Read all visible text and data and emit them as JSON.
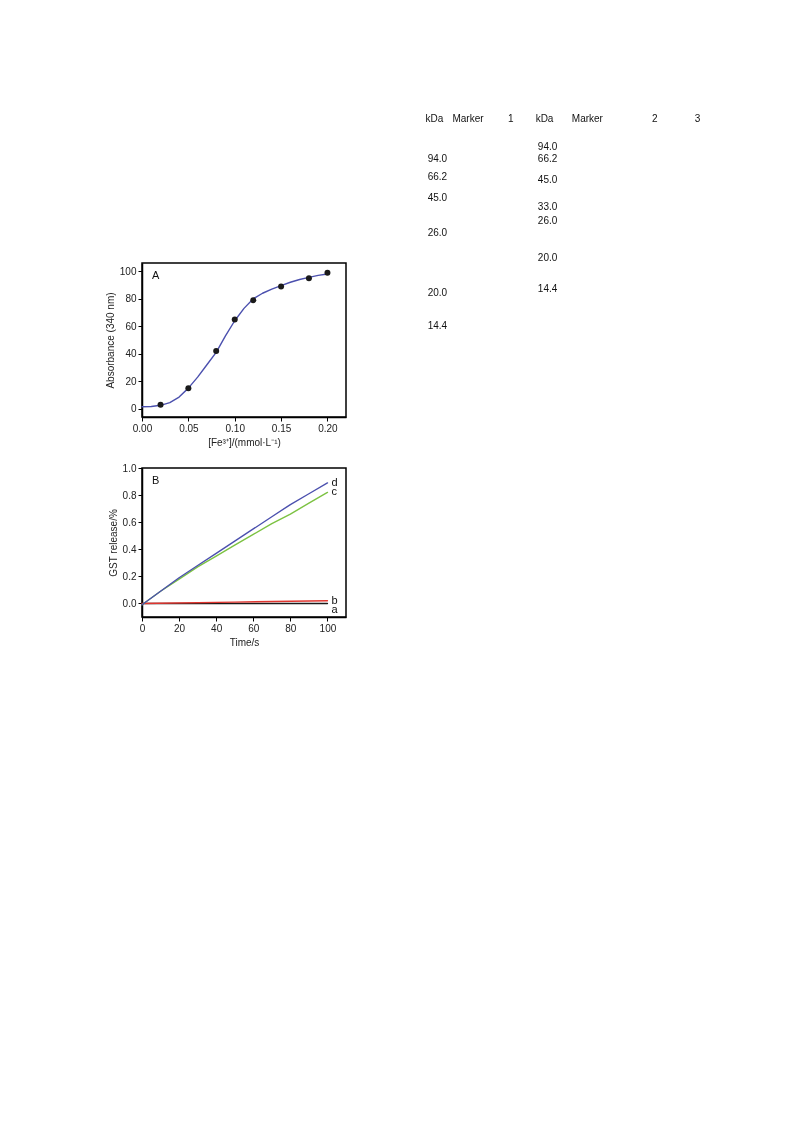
{
  "chart_data": [
    {
      "type": "scatter",
      "xlabel": "[Fe³⁺]/(mmol·L⁻¹)",
      "ylabel": "Absorbance (340 nm)",
      "annotations": [
        "A"
      ],
      "xlim": [
        0,
        0.22
      ],
      "xticks": [
        {
          "value": 0,
          "label": "0.00"
        },
        {
          "value": 0.05,
          "label": "0.05"
        },
        {
          "value": 0.1,
          "label": "0.10"
        },
        {
          "value": 0.15,
          "label": "0.15"
        },
        {
          "value": 0.2,
          "label": "0.20"
        }
      ],
      "ylim": [
        -6,
        106
      ],
      "yticks": [
        0,
        20,
        40,
        60,
        80,
        100
      ],
      "series": [
        {
          "type": "scatter",
          "color": "#1a1a1a",
          "marker": "circle",
          "x": [
            0.02,
            0.05,
            0.08,
            0.1,
            0.12,
            0.15,
            0.18,
            0.2
          ],
          "values": [
            3,
            15,
            42,
            65,
            79,
            89,
            95,
            99
          ]
        },
        {
          "type": "line",
          "color": "#4b50ae",
          "marker": "none",
          "x": [
            0,
            0.01,
            0.02,
            0.03,
            0.04,
            0.05,
            0.06,
            0.07,
            0.08,
            0.09,
            0.1,
            0.11,
            0.12,
            0.13,
            0.14,
            0.15,
            0.16,
            0.17,
            0.18,
            0.19,
            0.2
          ],
          "values": [
            1.5,
            1.6,
            2.5,
            4.5,
            8.5,
            15,
            23,
            32,
            41,
            53,
            64,
            73,
            80,
            84,
            87,
            89.5,
            92,
            94,
            95.5,
            97,
            98
          ]
        }
      ]
    },
    {
      "type": "line",
      "xlabel": "Time/s",
      "ylabel": "GST release/%",
      "annotations": [
        "B"
      ],
      "xlim": [
        0,
        110
      ],
      "xticks": [
        0,
        20,
        40,
        60,
        80,
        100
      ],
      "ylim": [
        -0.1,
        1.0
      ],
      "yticks": [
        {
          "value": 0,
          "label": "0.0"
        },
        0.2,
        0.4,
        0.6,
        0.8,
        {
          "value": 1,
          "label": "1.0"
        }
      ],
      "series": [
        {
          "name": "a",
          "color": "#1a1a1a",
          "x": [
            0,
            100
          ],
          "values": [
            0,
            0
          ]
        },
        {
          "name": "b",
          "color": "#e0352f",
          "x": [
            0,
            50,
            100
          ],
          "values": [
            0,
            0.01,
            0.02
          ]
        },
        {
          "name": "c",
          "color": "#7cc242",
          "x": [
            0,
            10,
            20,
            30,
            40,
            50,
            60,
            70,
            80,
            90,
            100
          ],
          "values": [
            -0.01,
            0.09,
            0.18,
            0.27,
            0.35,
            0.43,
            0.51,
            0.59,
            0.66,
            0.74,
            0.82
          ]
        },
        {
          "name": "d",
          "color": "#4b50ae",
          "x": [
            0,
            10,
            20,
            30,
            40,
            50,
            60,
            70,
            80,
            90,
            100
          ],
          "values": [
            -0.01,
            0.09,
            0.19,
            0.28,
            0.37,
            0.46,
            0.55,
            0.64,
            0.73,
            0.81,
            0.89
          ]
        }
      ]
    },
    {
      "type": "other",
      "annotations": [
        "kDa",
        "Marker",
        "1",
        "kDa",
        "Marker",
        "2",
        "3",
        "94.0",
        "66.2",
        "45.0",
        "26.0",
        "20.0",
        "14.4",
        "94.0",
        "66.2",
        "45.0",
        "33.0",
        "26.0",
        "20.0",
        "14.4"
      ]
    }
  ]
}
